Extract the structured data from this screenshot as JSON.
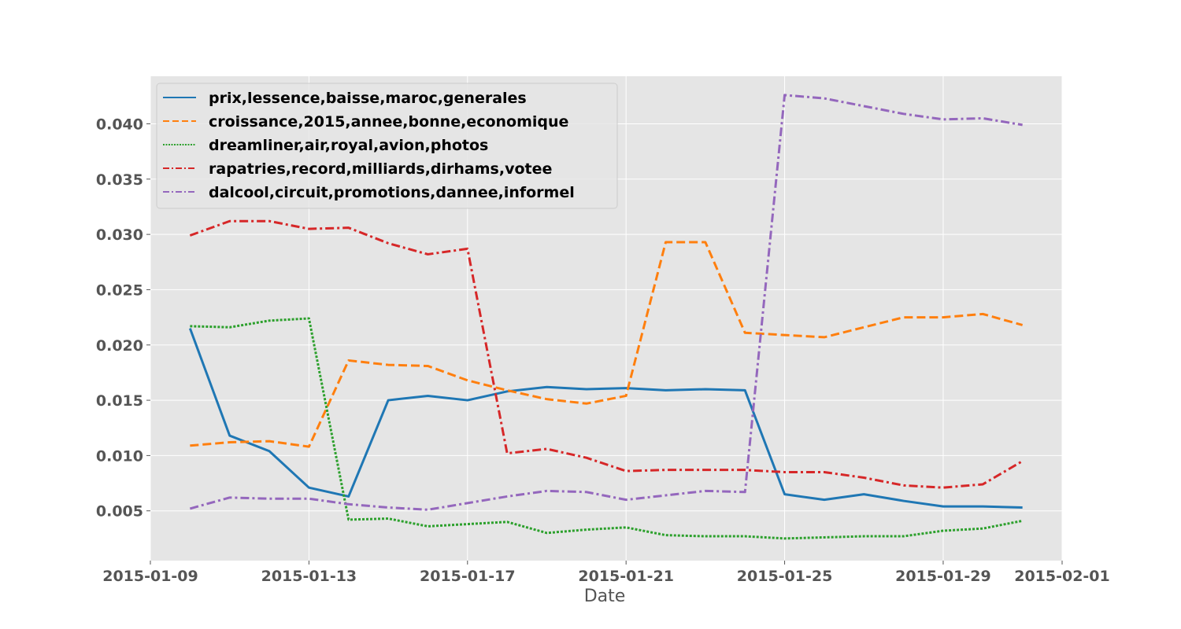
{
  "chart_data": {
    "type": "line",
    "title": "",
    "xlabel": "Date",
    "ylabel": "",
    "background": "#e5e5e5",
    "grid": true,
    "legend_position": "upper-left",
    "xlim": [
      "2015-01-09",
      "2015-02-01"
    ],
    "ylim": [
      0.0005,
      0.0443
    ],
    "x_ticks": [
      "2015-01-09",
      "2015-01-13",
      "2015-01-17",
      "2015-01-21",
      "2015-01-25",
      "2015-01-29",
      "2015-02-01"
    ],
    "y_ticks": [
      "0.005",
      "0.010",
      "0.015",
      "0.020",
      "0.025",
      "0.030",
      "0.035",
      "0.040"
    ],
    "x": [
      "2015-01-10",
      "2015-01-11",
      "2015-01-12",
      "2015-01-13",
      "2015-01-14",
      "2015-01-15",
      "2015-01-16",
      "2015-01-17",
      "2015-01-18",
      "2015-01-19",
      "2015-01-20",
      "2015-01-21",
      "2015-01-22",
      "2015-01-23",
      "2015-01-24",
      "2015-01-25",
      "2015-01-26",
      "2015-01-27",
      "2015-01-28",
      "2015-01-29",
      "2015-01-30",
      "2015-01-31"
    ],
    "series": [
      {
        "name": "prix,lessence,baisse,maroc,generales",
        "color": "#1f77b4",
        "dash": "solid",
        "values": [
          0.0215,
          0.0118,
          0.0104,
          0.0071,
          0.0063,
          0.015,
          0.0154,
          0.015,
          0.0158,
          0.0162,
          0.016,
          0.0161,
          0.0159,
          0.016,
          0.0159,
          0.0065,
          0.006,
          0.0065,
          0.0059,
          0.0054,
          0.0054,
          0.0053
        ]
      },
      {
        "name": "croissance,2015,annee,bonne,economique",
        "color": "#ff7f0e",
        "dash": "dashed",
        "values": [
          0.0109,
          0.0112,
          0.0113,
          0.0108,
          0.0186,
          0.0182,
          0.0181,
          0.0168,
          0.0159,
          0.0151,
          0.0147,
          0.0154,
          0.0293,
          0.0293,
          0.0211,
          0.0209,
          0.0207,
          0.0216,
          0.0225,
          0.0225,
          0.0228,
          0.0218
        ]
      },
      {
        "name": "dreamliner,air,royal,avion,photos",
        "color": "#2ca02c",
        "dash": "dotted",
        "values": [
          0.0217,
          0.0216,
          0.0222,
          0.0224,
          0.0042,
          0.0043,
          0.0036,
          0.0038,
          0.004,
          0.003,
          0.0033,
          0.0035,
          0.0028,
          0.0027,
          0.0027,
          0.0025,
          0.0026,
          0.0027,
          0.0027,
          0.0032,
          0.0034,
          0.0041
        ]
      },
      {
        "name": "rapatries,record,milliards,dirhams,votee",
        "color": "#d62728",
        "dash": "dashdot",
        "values": [
          0.0299,
          0.0312,
          0.0312,
          0.0305,
          0.0306,
          0.0292,
          0.0282,
          0.0287,
          0.0102,
          0.0106,
          0.0098,
          0.0086,
          0.0087,
          0.0087,
          0.0087,
          0.0085,
          0.0085,
          0.008,
          0.0073,
          0.0071,
          0.0074,
          0.0095
        ]
      },
      {
        "name": "dalcool,circuit,promotions,dannee,informel",
        "color": "#9467bd",
        "dash": "dashdot",
        "values": [
          0.0052,
          0.0062,
          0.0061,
          0.0061,
          0.0056,
          0.0053,
          0.0051,
          0.0057,
          0.0063,
          0.0068,
          0.0067,
          0.006,
          0.0064,
          0.0068,
          0.0067,
          0.0426,
          0.0423,
          0.0416,
          0.0409,
          0.0404,
          0.0405,
          0.0399
        ]
      }
    ]
  }
}
